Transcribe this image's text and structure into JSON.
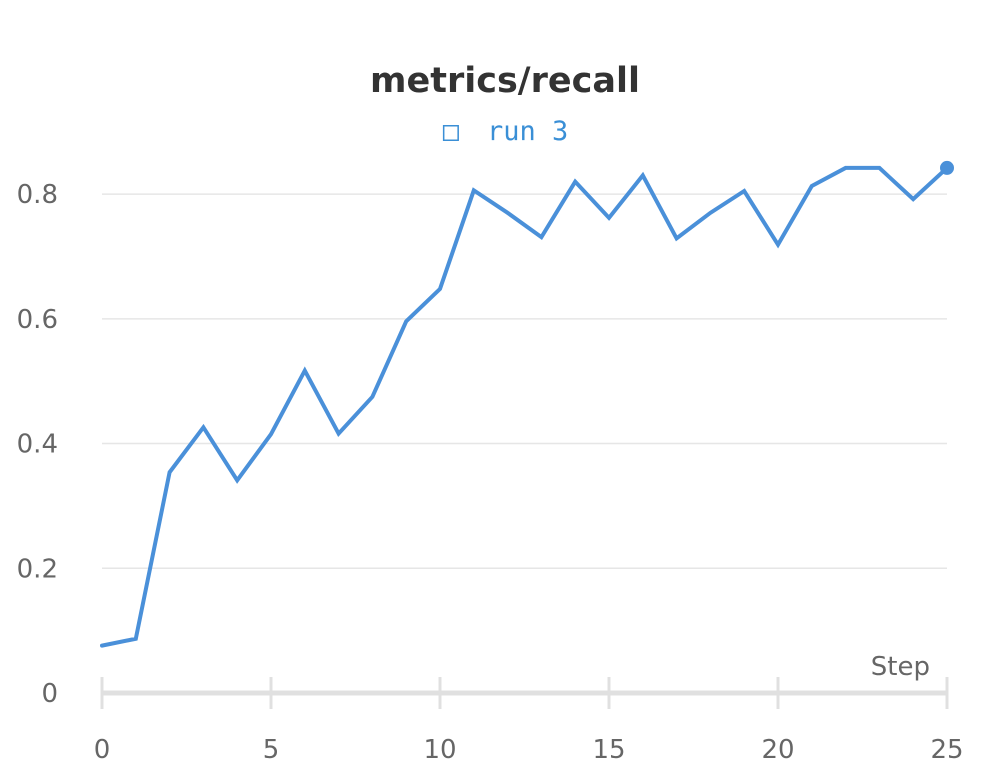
{
  "chart_data": {
    "type": "line",
    "title": "metrics/recall",
    "xlabel": "Step",
    "ylabel": "",
    "xlim": [
      0,
      25
    ],
    "ylim": [
      0,
      0.89
    ],
    "grid": true,
    "legend_placement": "top-center",
    "x_ticks": [
      0,
      5,
      10,
      15,
      20,
      25
    ],
    "y_ticks": [
      0,
      0.2,
      0.4,
      0.6,
      0.8
    ],
    "y_tick_labels": [
      "0",
      "0.2",
      "0.4",
      "0.6",
      "0.8"
    ],
    "series": [
      {
        "name": "run 3",
        "legend_icon": "□",
        "color": "#4a90d9",
        "x": [
          0,
          1,
          2,
          3,
          4,
          5,
          6,
          7,
          8,
          9,
          10,
          11,
          12,
          13,
          14,
          15,
          16,
          17,
          18,
          19,
          20,
          21,
          22,
          23,
          24,
          25
        ],
        "values": [
          0.076,
          0.087,
          0.354,
          0.426,
          0.341,
          0.415,
          0.517,
          0.416,
          0.475,
          0.596,
          0.648,
          0.806,
          0.77,
          0.731,
          0.82,
          0.762,
          0.83,
          0.729,
          0.77,
          0.805,
          0.719,
          0.813,
          0.842,
          0.842,
          0.792,
          0.842
        ]
      }
    ]
  }
}
